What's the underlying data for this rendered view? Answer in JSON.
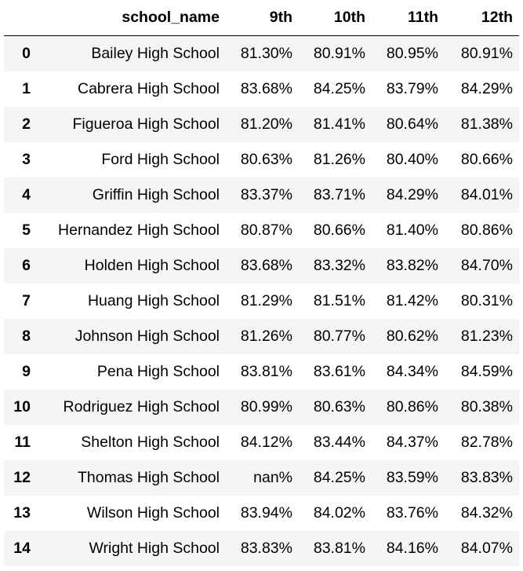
{
  "table": {
    "columns": [
      "",
      "school_name",
      "9th",
      "10th",
      "11th",
      "12th"
    ],
    "rows": [
      {
        "index": "0",
        "school_name": "Bailey High School",
        "ninth": "81.30%",
        "tenth": "80.91%",
        "eleventh": "80.95%",
        "twelfth": "80.91%"
      },
      {
        "index": "1",
        "school_name": "Cabrera High School",
        "ninth": "83.68%",
        "tenth": "84.25%",
        "eleventh": "83.79%",
        "twelfth": "84.29%"
      },
      {
        "index": "2",
        "school_name": "Figueroa High School",
        "ninth": "81.20%",
        "tenth": "81.41%",
        "eleventh": "80.64%",
        "twelfth": "81.38%"
      },
      {
        "index": "3",
        "school_name": "Ford High School",
        "ninth": "80.63%",
        "tenth": "81.26%",
        "eleventh": "80.40%",
        "twelfth": "80.66%"
      },
      {
        "index": "4",
        "school_name": "Griffin High School",
        "ninth": "83.37%",
        "tenth": "83.71%",
        "eleventh": "84.29%",
        "twelfth": "84.01%"
      },
      {
        "index": "5",
        "school_name": "Hernandez High School",
        "ninth": "80.87%",
        "tenth": "80.66%",
        "eleventh": "81.40%",
        "twelfth": "80.86%"
      },
      {
        "index": "6",
        "school_name": "Holden High School",
        "ninth": "83.68%",
        "tenth": "83.32%",
        "eleventh": "83.82%",
        "twelfth": "84.70%"
      },
      {
        "index": "7",
        "school_name": "Huang High School",
        "ninth": "81.29%",
        "tenth": "81.51%",
        "eleventh": "81.42%",
        "twelfth": "80.31%"
      },
      {
        "index": "8",
        "school_name": "Johnson High School",
        "ninth": "81.26%",
        "tenth": "80.77%",
        "eleventh": "80.62%",
        "twelfth": "81.23%"
      },
      {
        "index": "9",
        "school_name": "Pena High School",
        "ninth": "83.81%",
        "tenth": "83.61%",
        "eleventh": "84.34%",
        "twelfth": "84.59%"
      },
      {
        "index": "10",
        "school_name": "Rodriguez High School",
        "ninth": "80.99%",
        "tenth": "80.63%",
        "eleventh": "80.86%",
        "twelfth": "80.38%"
      },
      {
        "index": "11",
        "school_name": "Shelton High School",
        "ninth": "84.12%",
        "tenth": "83.44%",
        "eleventh": "84.37%",
        "twelfth": "82.78%"
      },
      {
        "index": "12",
        "school_name": "Thomas High School",
        "ninth": "nan%",
        "tenth": "84.25%",
        "eleventh": "83.59%",
        "twelfth": "83.83%"
      },
      {
        "index": "13",
        "school_name": "Wilson High School",
        "ninth": "83.94%",
        "tenth": "84.02%",
        "eleventh": "83.76%",
        "twelfth": "84.32%"
      },
      {
        "index": "14",
        "school_name": "Wright High School",
        "ninth": "83.83%",
        "tenth": "83.81%",
        "eleventh": "84.16%",
        "twelfth": "84.07%"
      }
    ]
  },
  "colors": {
    "stripe": "#f5f5f5",
    "background": "#ffffff",
    "header_rule": "#000000"
  }
}
